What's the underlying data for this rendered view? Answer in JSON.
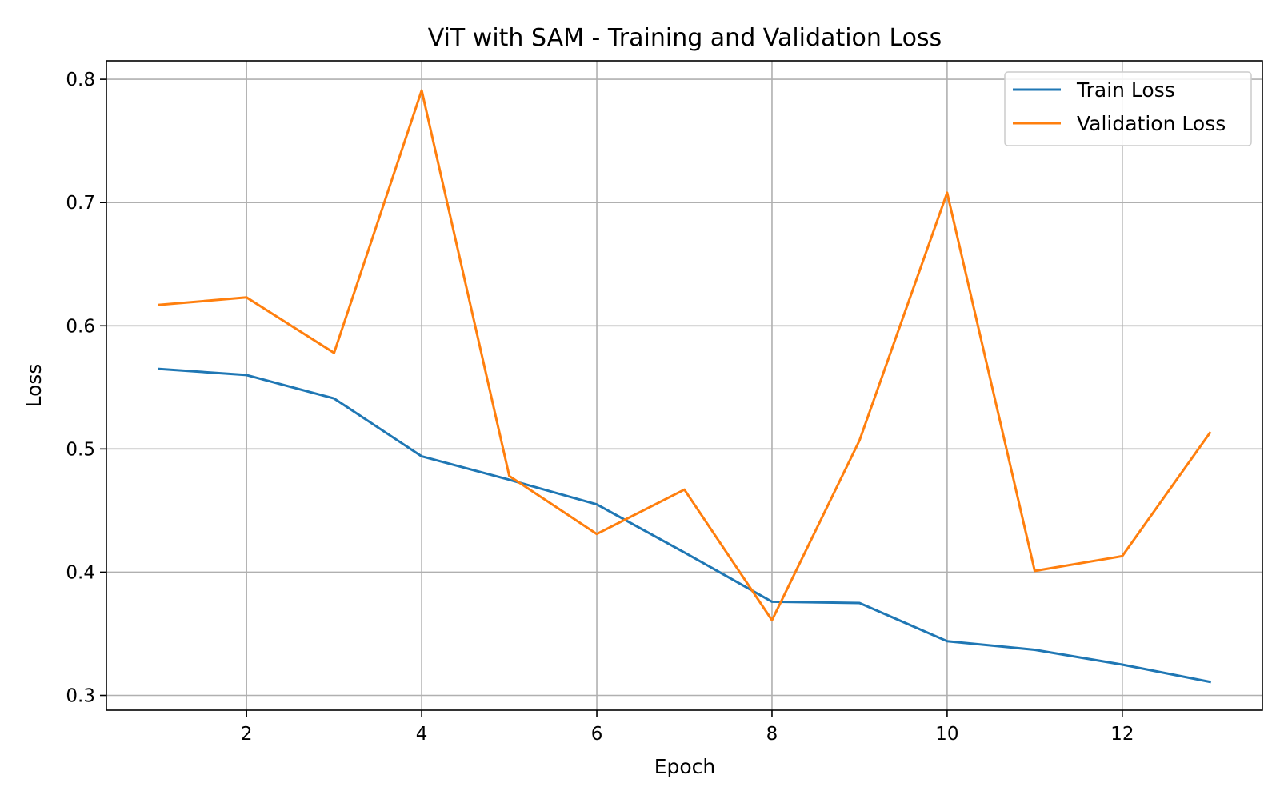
{
  "chart_data": {
    "type": "line",
    "title": "ViT with SAM - Training and Validation Loss",
    "xlabel": "Epoch",
    "ylabel": "Loss",
    "x": [
      1,
      2,
      3,
      4,
      5,
      6,
      7,
      8,
      9,
      10,
      11,
      12,
      13
    ],
    "xlim": [
      0.4,
      13.6
    ],
    "ylim": [
      0.288,
      0.815
    ],
    "xticks": [
      2,
      4,
      6,
      8,
      10,
      12
    ],
    "yticks": [
      0.3,
      0.4,
      0.5,
      0.6,
      0.7,
      0.8
    ],
    "xtick_labels": [
      "2",
      "4",
      "6",
      "8",
      "10",
      "12"
    ],
    "ytick_labels": [
      "0.3",
      "0.4",
      "0.5",
      "0.6",
      "0.7",
      "0.8"
    ],
    "grid": true,
    "legend_position": "top-right",
    "series": [
      {
        "name": "Train Loss",
        "color": "#1f77b4",
        "values": [
          0.565,
          0.56,
          0.541,
          0.494,
          0.475,
          0.455,
          0.416,
          0.376,
          0.375,
          0.344,
          0.337,
          0.325,
          0.311
        ]
      },
      {
        "name": "Validation Loss",
        "color": "#ff7f0e",
        "values": [
          0.617,
          0.623,
          0.578,
          0.791,
          0.478,
          0.431,
          0.467,
          0.361,
          0.507,
          0.708,
          0.401,
          0.413,
          0.513
        ]
      }
    ]
  }
}
